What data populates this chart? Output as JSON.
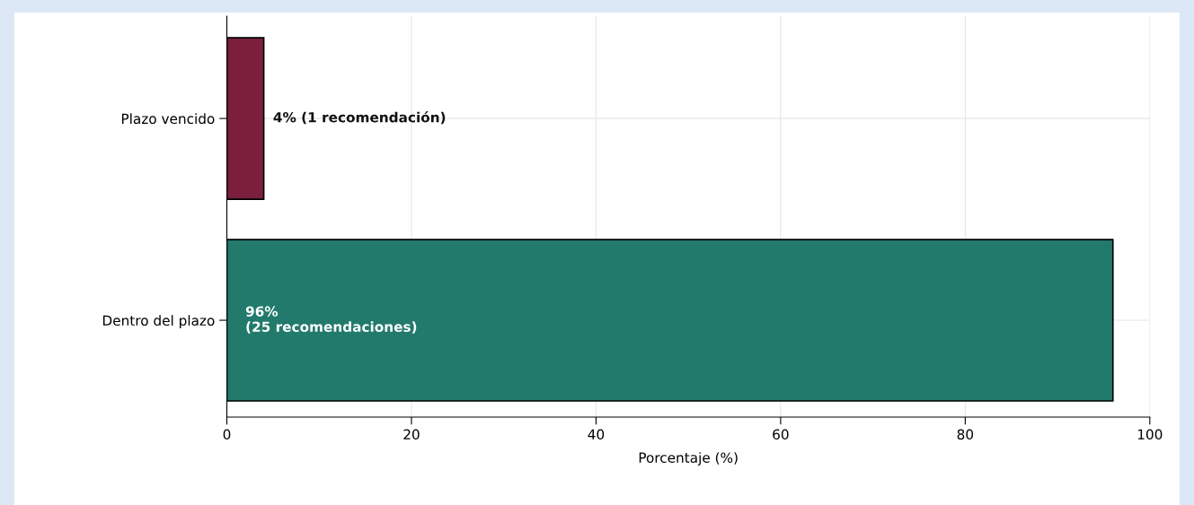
{
  "chart_data": {
    "type": "bar",
    "orientation": "horizontal",
    "categories": [
      "Plazo vencido",
      "Dentro del plazo"
    ],
    "values": [
      4,
      96
    ],
    "colors": [
      "#7b1f3d",
      "#227a6c"
    ],
    "value_labels": [
      "4% (1 recomendación)",
      "96%\n(25 recomendaciones)"
    ],
    "xlabel": "Porcentaje (%)",
    "xlim": [
      0,
      100
    ],
    "xticks": [
      0,
      20,
      40,
      60,
      80,
      100
    ],
    "grid": true
  }
}
